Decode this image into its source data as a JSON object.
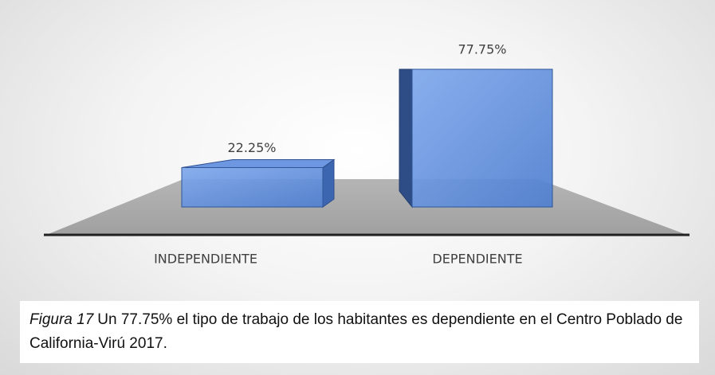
{
  "chart_data": {
    "type": "bar3d",
    "categories": [
      "INDEPENDIENTE",
      "DEPENDIENTE"
    ],
    "values": [
      22.25,
      77.75
    ],
    "value_labels": [
      "22.25%",
      "77.75%"
    ],
    "color": "#5b8bd6"
  },
  "caption": {
    "label": "Figura 17",
    "text": "Un 77.75% el tipo de trabajo de los habitantes es dependiente en el Centro Poblado de California-Virú 2017."
  }
}
